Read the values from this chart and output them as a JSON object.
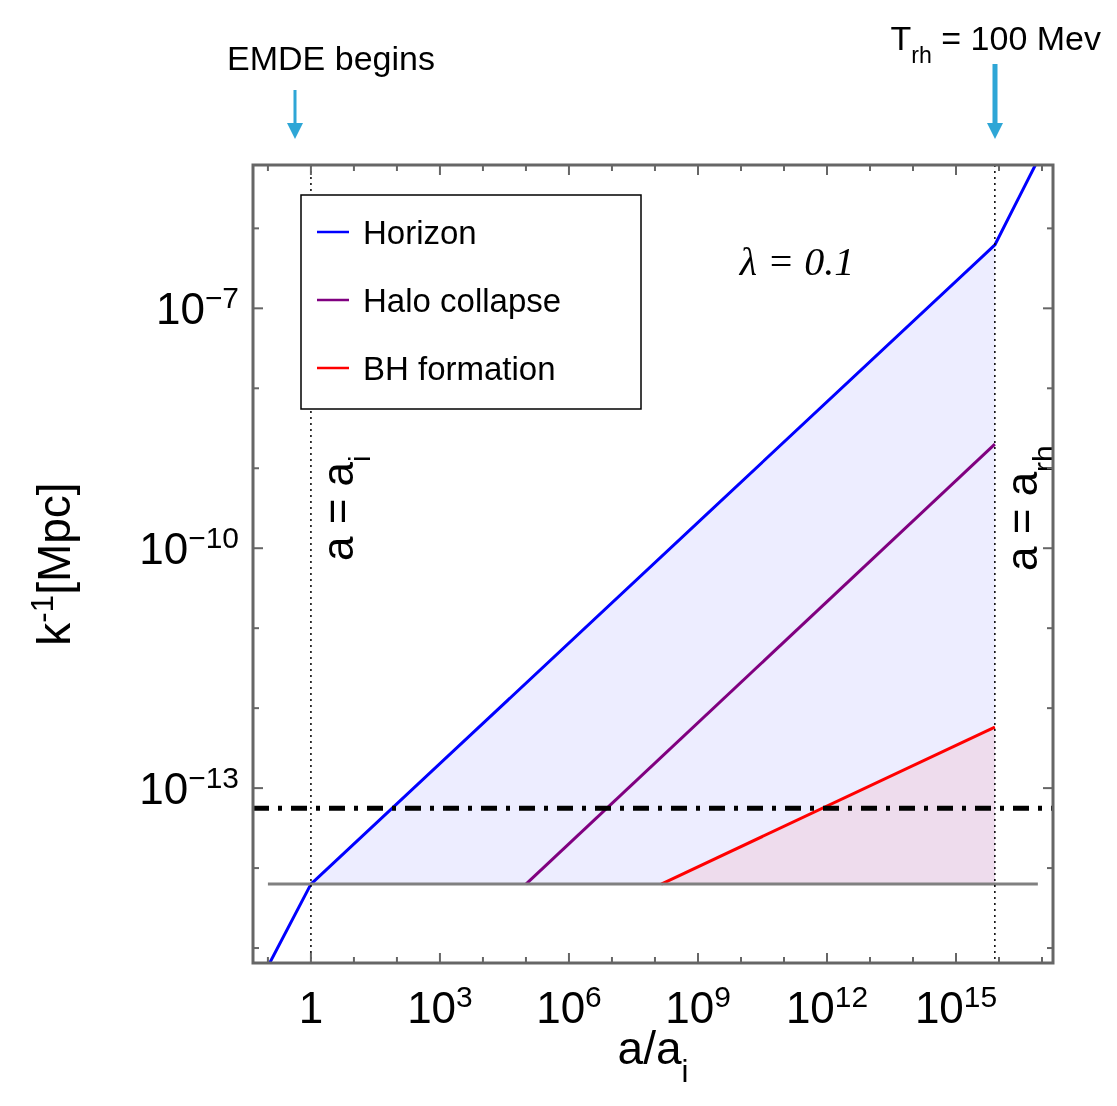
{
  "chart_data": {
    "type": "line",
    "xlabel": "a/a$_{i}$",
    "ylabel": "k$^{-1}$[Mpc]",
    "log": "xy",
    "xlim": [
      0.045,
      1.8e+17
    ],
    "ylim": [
      6.5e-16,
      6.2e-06
    ],
    "xticks": [
      {
        "value": 0.1,
        "label": null
      },
      {
        "value": 1,
        "label": "1"
      },
      {
        "value": 10,
        "label": null
      },
      {
        "value": 100,
        "label": null
      },
      {
        "value": 1000,
        "label": "10$^{3}$"
      },
      {
        "value": 10000.0,
        "label": null
      },
      {
        "value": 100000.0,
        "label": null
      },
      {
        "value": 1000000.0,
        "label": "10$^{6}$"
      },
      {
        "value": 10000000.0,
        "label": null
      },
      {
        "value": 100000000.0,
        "label": null
      },
      {
        "value": 1000000000.0,
        "label": "10$^{9}$"
      },
      {
        "value": 10000000000.0,
        "label": null
      },
      {
        "value": 100000000000.0,
        "label": null
      },
      {
        "value": 1000000000000.0,
        "label": "10$^{12}$"
      },
      {
        "value": 10000000000000.0,
        "label": null
      },
      {
        "value": 100000000000000.0,
        "label": null
      },
      {
        "value": 1000000000000000.0,
        "label": "10$^{15}$"
      },
      {
        "value": 1e+16,
        "label": null
      },
      {
        "value": 1e+17,
        "label": null
      }
    ],
    "yticks": [
      {
        "value": 1e-15,
        "label": null
      },
      {
        "value": 1e-14,
        "label": null
      },
      {
        "value": 1e-13,
        "label": "10$^{−13}$"
      },
      {
        "value": 1e-12,
        "label": null
      },
      {
        "value": 1e-11,
        "label": null
      },
      {
        "value": 1e-10,
        "label": "10$^{−10}$"
      },
      {
        "value": 1e-09,
        "label": null
      },
      {
        "value": 1e-08,
        "label": null
      },
      {
        "value": 1e-07,
        "label": "10$^{−7}$"
      },
      {
        "value": 1e-06,
        "label": null
      }
    ],
    "series": [
      {
        "name": "Horizon",
        "color": "#0000ff",
        "x": [
          0.11,
          1,
          8000000000000000.0,
          7e+16
        ],
        "values": [
          6.5e-16,
          6.3e-15,
          6.2e-07,
          6.2e-06
        ],
        "lower": [
          null,
          6.3e-15,
          6.3e-15,
          null
        ],
        "upper": [
          null,
          6.3e-15,
          6.2e-07,
          null
        ]
      },
      {
        "name": "Halo collapse",
        "color": "#800080",
        "x": [
          100000.0,
          8000000000000000.0
        ],
        "values": [
          6.3e-15,
          2e-09
        ]
      },
      {
        "name": "BH formation",
        "color": "#ff0000",
        "x": [
          140000000.0,
          8000000000000000.0
        ],
        "values": [
          6.3e-15,
          5.8e-13
        ],
        "lower": [
          6.3e-15,
          6.3e-15
        ],
        "upper": [
          6.3e-15,
          5.8e-13
        ]
      },
      {
        "color": "#808080",
        "x": [
          0.1,
          8e+16
        ],
        "values": [
          6.3e-15,
          6.3e-15
        ]
      }
    ],
    "ref_lines": [
      {
        "axis": "y",
        "value": 5.6e-14,
        "color": "#000000",
        "line_style": "dashed"
      },
      {
        "axis": "x",
        "value": 1,
        "label": "a = a$_{i}$",
        "color": "#000000",
        "line_style": "dotted"
      },
      {
        "axis": "x",
        "value": 8000000000000000.0,
        "label": "a = a$_{rh}$",
        "color": "#000000",
        "line_style": "dotted"
      }
    ],
    "annotations": [
      "EMDE begins",
      "T$_{rh}$ = 100 Mev",
      "λ = 0.1"
    ],
    "legend": "top left"
  }
}
